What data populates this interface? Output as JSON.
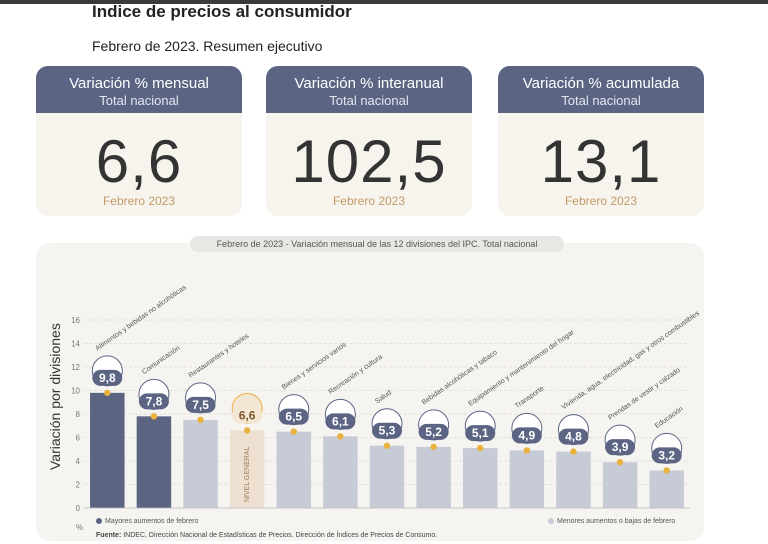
{
  "header": {
    "title": "Indice de precios al consumidor",
    "subtitle": "Febrero de 2023. Resumen ejecutivo"
  },
  "cards": [
    {
      "title": "Variación % mensual",
      "subtitle": "Total nacional",
      "value": "6,6",
      "footer": "Febrero 2023"
    },
    {
      "title": "Variación % interanual",
      "subtitle": "Total nacional",
      "value": "102,5",
      "footer": "Febrero 2023"
    },
    {
      "title": "Variación % acumulada",
      "subtitle": "Total nacional",
      "value": "13,1",
      "footer": "Febrero 2023"
    }
  ],
  "chart_header": {
    "prefix": "Febrero de 2023",
    "text": " - Variación mensual de las 12 divisiones del IPC. Total nacional"
  },
  "chart_data": {
    "type": "bar",
    "ylabel": "Variación por divisiones",
    "yunit": "%",
    "ylim": [
      0,
      16
    ],
    "yticks": [
      "0",
      "2",
      "4",
      "6",
      "8",
      "10",
      "12",
      "14",
      "16"
    ],
    "grid": true,
    "categories": [
      "Alimentos y bebidas no alcohólicas",
      "Comunicación",
      "Restaurantes y hoteles",
      "NIVEL GENERAL",
      "Bienes y servicios varios",
      "Recreación y cultura",
      "Salud",
      "Bebidas alcohólicas y tabaco",
      "Equipamiento y mantenimiento del hogar",
      "Transporte",
      "Vivienda, agua, electricidad, gas y otros combustibles",
      "Prendas de vestir y calzado",
      "Educación"
    ],
    "values": [
      9.8,
      7.8,
      7.5,
      6.6,
      6.5,
      6.1,
      5.3,
      5.2,
      5.1,
      4.9,
      4.8,
      3.9,
      3.2
    ],
    "value_labels": [
      "9,8",
      "7,8",
      "7,5",
      "6,6",
      "6,5",
      "6,1",
      "5,3",
      "5,2",
      "5,1",
      "4,9",
      "4,8",
      "3,9",
      "3,2"
    ],
    "groups": [
      "mayor",
      "mayor",
      "menor",
      "general",
      "menor",
      "menor",
      "menor",
      "menor",
      "menor",
      "menor",
      "menor",
      "menor",
      "menor"
    ],
    "colors": {
      "mayor": "#5b6483",
      "menor": "#c6cbd6",
      "general": "#ede0d0",
      "marker": "#e9b13d"
    },
    "legend": {
      "mayor": "Mayores aumentos de febrero",
      "menor": "Menores aumentos o bajas de febrero"
    },
    "source_label": "Fuente:",
    "source_text": " INDEC, Dirección Nacional de Estadísticas de Precios. Dirección de Índices de Precios de Consumo."
  }
}
